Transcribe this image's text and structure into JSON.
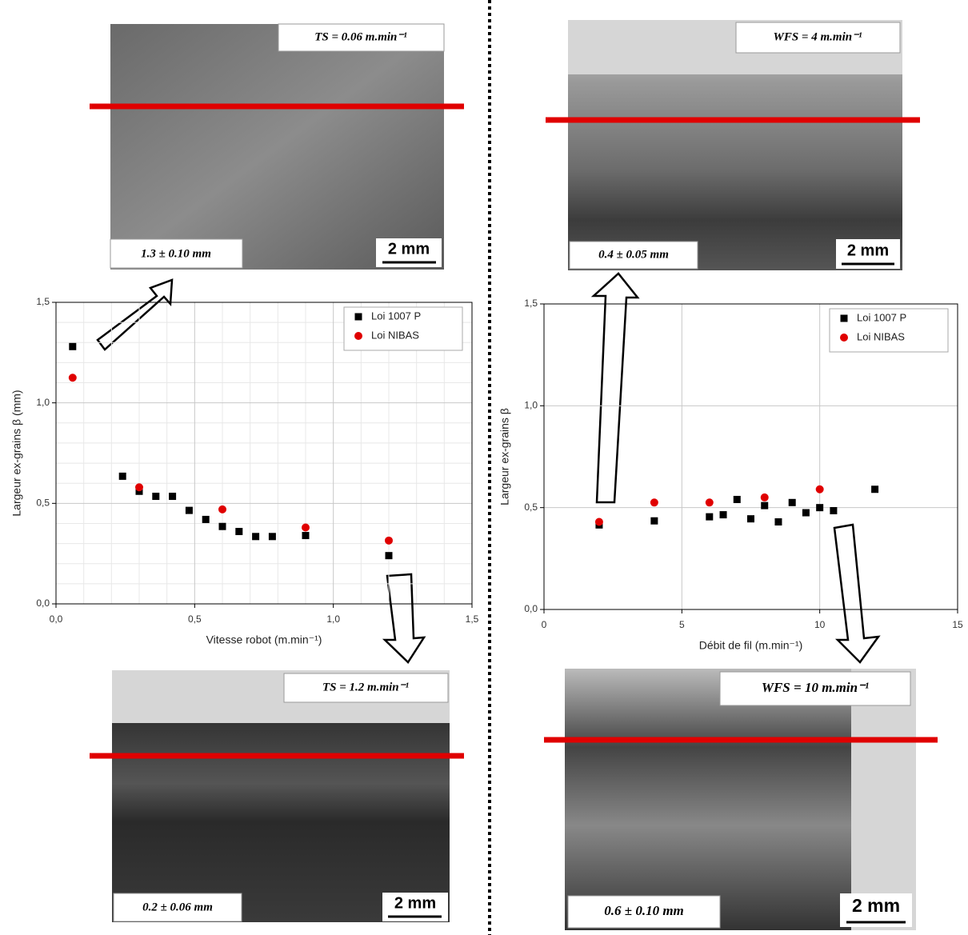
{
  "chart_data": [
    {
      "type": "scatter",
      "x_label": "Vitesse robot (m.min⁻¹)",
      "y_label": "Largeur ex-grains β (mm)",
      "xlim": [
        0,
        1.5
      ],
      "ylim": [
        0,
        1.5
      ],
      "xticks": [
        {
          "value": 0,
          "label": "0,0"
        },
        {
          "value": 0.5,
          "label": "0,5"
        },
        {
          "value": 1,
          "label": "1,0"
        },
        {
          "value": 1.5,
          "label": "1,5"
        }
      ],
      "yticks": [
        {
          "value": 0,
          "label": "0,0"
        },
        {
          "value": 0.5,
          "label": "0,5"
        },
        {
          "value": 1,
          "label": "1,0"
        },
        {
          "value": 1.5,
          "label": "1,5"
        }
      ],
      "grid": true,
      "minor_grid": true,
      "legend": "upper right",
      "series": [
        {
          "name": "Loi 1007 P",
          "color": "#000000",
          "marker": "square",
          "x": [
            0.06,
            0.24,
            0.3,
            0.36,
            0.42,
            0.48,
            0.54,
            0.6,
            0.66,
            0.72,
            0.78,
            0.9,
            1.2
          ],
          "values": [
            1.28,
            0.635,
            0.56,
            0.535,
            0.535,
            0.465,
            0.42,
            0.385,
            0.36,
            0.335,
            0.335,
            0.34,
            0.24
          ]
        },
        {
          "name": "Loi NIBAS",
          "color": "#e00000",
          "marker": "circle",
          "x": [
            0.06,
            0.3,
            0.6,
            0.9,
            1.2
          ],
          "values": [
            1.125,
            0.58,
            0.47,
            0.38,
            0.315
          ]
        }
      ]
    },
    {
      "type": "scatter",
      "x_label": "Débit de fil (m.min⁻¹)",
      "y_label": "Largeur ex-grains β",
      "xlim": [
        0,
        15
      ],
      "ylim": [
        0,
        1.5
      ],
      "xticks": [
        0,
        5,
        10,
        15
      ],
      "yticks": [
        {
          "value": 0,
          "label": "0,0"
        },
        {
          "value": 0.5,
          "label": "0,5"
        },
        {
          "value": 1,
          "label": "1,0"
        },
        {
          "value": 1.5,
          "label": "1,5"
        }
      ],
      "grid": true,
      "minor_grid": false,
      "legend": "upper right",
      "series": [
        {
          "name": "Loi 1007 P",
          "color": "#000000",
          "marker": "square",
          "x": [
            2,
            4,
            6,
            6.5,
            7,
            7.5,
            8,
            8.5,
            9,
            9.5,
            10,
            10.5,
            12
          ],
          "values": [
            0.415,
            0.435,
            0.455,
            0.465,
            0.54,
            0.445,
            0.51,
            0.43,
            0.525,
            0.475,
            0.5,
            0.485,
            0.59
          ]
        },
        {
          "name": "Loi NIBAS",
          "color": "#e00000",
          "marker": "circle",
          "x": [
            2,
            4,
            6,
            8,
            10
          ],
          "values": [
            0.43,
            0.525,
            0.525,
            0.55,
            0.59
          ]
        }
      ]
    }
  ],
  "micrographs": [
    {
      "condition": "TS =  0.06 m.min⁻¹",
      "width": "1.3 ± 0.10 mm",
      "scale": "2 mm"
    },
    {
      "condition": "WFS =  4 m.min⁻¹",
      "width": "0.4 ± 0.05 mm",
      "scale": "2 mm"
    },
    {
      "condition": "TS =  1.2 m.min⁻¹",
      "width": "0.2 ± 0.06 mm",
      "scale": "2 mm"
    },
    {
      "condition": "WFS =  10 m.min⁻¹",
      "width": "0.6 ± 0.10 mm",
      "scale": "2 mm"
    }
  ]
}
